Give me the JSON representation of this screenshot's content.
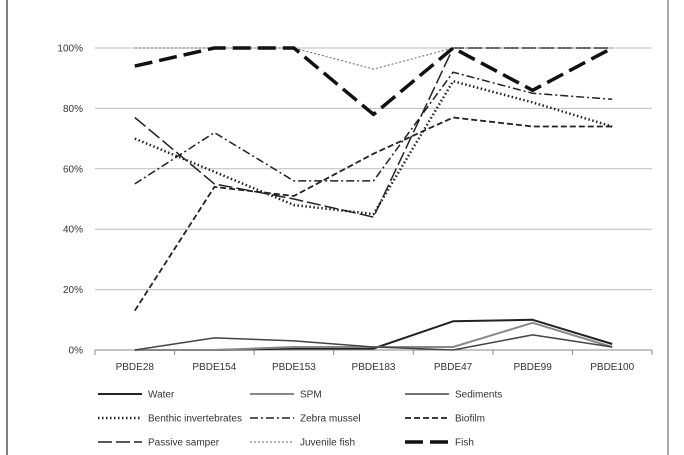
{
  "chart_data": {
    "type": "line",
    "categories": [
      "PBDE28",
      "PBDE154",
      "PBDE153",
      "PBDE183",
      "PBDE47",
      "PBDE99",
      "PBDE100"
    ],
    "ylim": [
      0,
      100
    ],
    "yticks": [
      0,
      20,
      40,
      60,
      80,
      100
    ],
    "ytick_labels": [
      "0%",
      "20%",
      "40%",
      "60%",
      "80%",
      "100%"
    ],
    "grid": true,
    "legend_position": "bottom",
    "series": [
      {
        "name": "Water",
        "values": [
          0,
          0,
          0.5,
          0.5,
          9.5,
          10,
          2
        ],
        "color": "#222222",
        "dash": "",
        "width": 2
      },
      {
        "name": "SPM",
        "values": [
          0,
          0,
          1,
          1,
          1,
          9,
          1
        ],
        "color": "#888888",
        "dash": "",
        "width": 2
      },
      {
        "name": "Sediments",
        "values": [
          0,
          4,
          3,
          1,
          0,
          5,
          1
        ],
        "color": "#444444",
        "dash": "",
        "width": 1.5
      },
      {
        "name": "Benthic invertebrates",
        "values": [
          70,
          59,
          48,
          45,
          89,
          82,
          74
        ],
        "color": "#222222",
        "dash": "1.5,2.5",
        "width": 2.5
      },
      {
        "name": "Zebra mussel",
        "values": [
          55,
          72,
          56,
          56,
          92,
          85,
          83
        ],
        "color": "#222222",
        "dash": "8,3,2,3",
        "width": 1.5
      },
      {
        "name": "Biofilm",
        "values": [
          13,
          54,
          51,
          65,
          77,
          74,
          74
        ],
        "color": "#222222",
        "dash": "6,3",
        "width": 1.8
      },
      {
        "name": "Passive samper",
        "values": [
          77,
          55,
          50,
          44,
          100,
          100,
          100
        ],
        "color": "#222222",
        "dash": "14,4",
        "width": 1.5
      },
      {
        "name": "Juvenile fish",
        "values": [
          100,
          100,
          100,
          93,
          100,
          100,
          100
        ],
        "color": "#666666",
        "dash": "2,2",
        "width": 1
      },
      {
        "name": "Fish",
        "values": [
          94,
          100,
          100,
          78,
          100,
          86,
          100
        ],
        "color": "#111111",
        "dash": "18,7",
        "width": 3.5
      }
    ]
  }
}
